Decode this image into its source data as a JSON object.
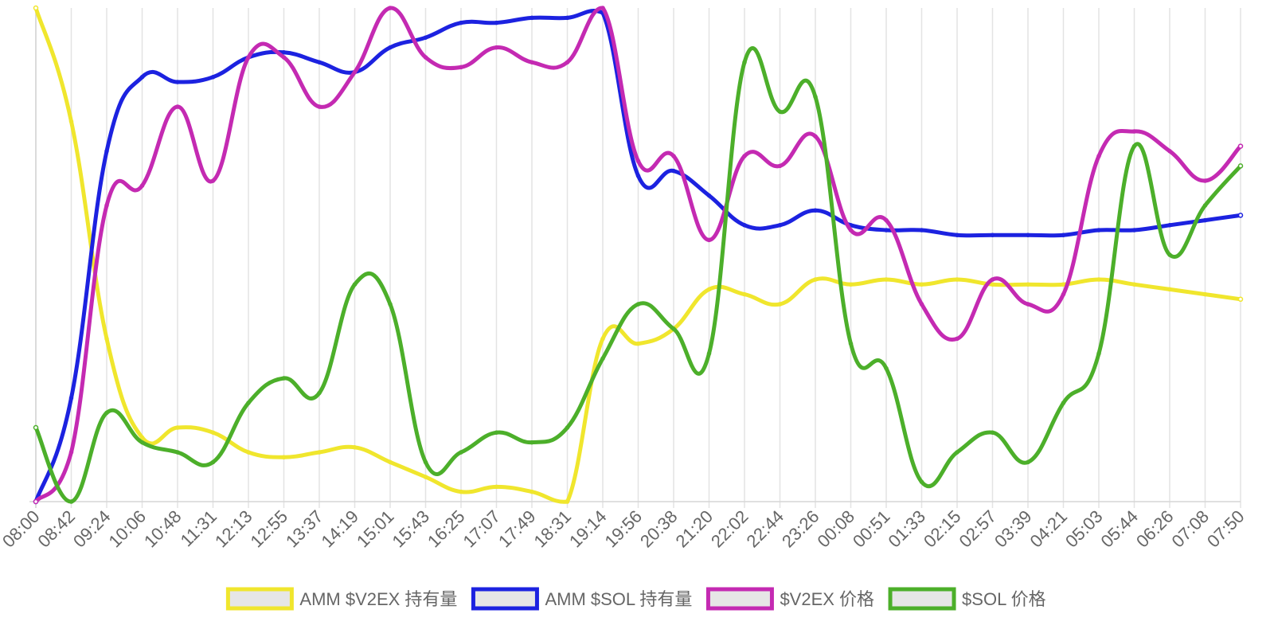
{
  "chart_data": {
    "type": "line",
    "title": "",
    "xlabel": "",
    "ylabel": "",
    "ylim": [
      0,
      100
    ],
    "grid": true,
    "legend_position": "bottom",
    "categories": [
      "08:00",
      "08:42",
      "09:24",
      "10:06",
      "10:48",
      "11:31",
      "12:13",
      "12:55",
      "13:37",
      "14:19",
      "15:01",
      "15:43",
      "16:25",
      "17:07",
      "17:49",
      "18:31",
      "19:14",
      "19:56",
      "20:38",
      "21:20",
      "22:02",
      "22:44",
      "23:26",
      "00:08",
      "00:51",
      "01:33",
      "02:15",
      "02:57",
      "03:39",
      "04:21",
      "05:03",
      "05:44",
      "06:26",
      "07:08",
      "07:50"
    ],
    "series": [
      {
        "name": "AMM $V2EX 持有量",
        "color": "#f0e62d",
        "values": [
          100,
          77,
          33,
          13,
          15,
          14,
          10,
          9,
          10,
          11,
          8,
          5,
          2,
          3,
          2,
          0,
          33,
          32,
          35,
          43,
          42,
          40,
          45,
          44,
          45,
          44,
          45,
          44,
          44,
          44,
          45,
          44,
          43,
          42,
          41
        ]
      },
      {
        "name": "AMM $SOL 持有量",
        "color": "#1c22e0",
        "values": [
          0,
          21,
          71,
          86,
          85,
          86,
          90,
          91,
          89,
          87,
          92,
          94,
          97,
          97,
          98,
          98,
          99,
          66,
          67,
          62,
          56,
          56,
          59,
          56,
          55,
          55,
          54,
          54,
          54,
          54,
          55,
          55,
          56,
          57,
          58
        ]
      },
      {
        "name": "$V2EX 价格",
        "color": "#c42ab2",
        "values": [
          0,
          10,
          60,
          64,
          80,
          65,
          90,
          90,
          80,
          87,
          100,
          90,
          88,
          92,
          89,
          89,
          100,
          69,
          70,
          53,
          70,
          68,
          74,
          55,
          57,
          40,
          33,
          45,
          40,
          42,
          70,
          75,
          71,
          65,
          72
        ]
      },
      {
        "name": "$SOL 价格",
        "color": "#4caf2a",
        "values": [
          15,
          0,
          18,
          12,
          10,
          8,
          20,
          25,
          22,
          44,
          40,
          8,
          10,
          14,
          12,
          15,
          29,
          40,
          35,
          30,
          89,
          79,
          82,
          32,
          27,
          4,
          10,
          14,
          8,
          20,
          30,
          72,
          50,
          60,
          68
        ]
      }
    ]
  }
}
